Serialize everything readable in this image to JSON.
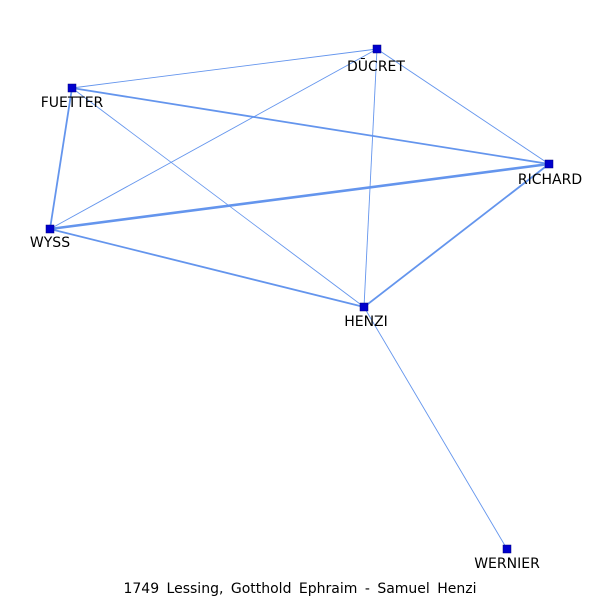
{
  "colors": {
    "edge": "#6495ed",
    "node_fill": "#0000cd",
    "node_stroke": "#000080",
    "label": "#000000"
  },
  "caption": "1749 Lessing, Gotthold Ephraim - Samuel Henzi",
  "nodes": [
    {
      "id": "ducret",
      "label": "DŪCRET"
    },
    {
      "id": "fuetter",
      "label": "FUETTER"
    },
    {
      "id": "richard",
      "label": "RICHARD"
    },
    {
      "id": "wyss",
      "label": "WYSS"
    },
    {
      "id": "henzi",
      "label": "HENZI"
    },
    {
      "id": "wernier",
      "label": "WERNIER"
    }
  ],
  "edges": [
    {
      "source": "fuetter",
      "target": "ducret",
      "weight": 1
    },
    {
      "source": "fuetter",
      "target": "richard",
      "weight": 2
    },
    {
      "source": "fuetter",
      "target": "wyss",
      "weight": 2
    },
    {
      "source": "fuetter",
      "target": "henzi",
      "weight": 1
    },
    {
      "source": "ducret",
      "target": "richard",
      "weight": 1
    },
    {
      "source": "ducret",
      "target": "wyss",
      "weight": 1
    },
    {
      "source": "ducret",
      "target": "henzi",
      "weight": 1
    },
    {
      "source": "wyss",
      "target": "richard",
      "weight": 3
    },
    {
      "source": "wyss",
      "target": "henzi",
      "weight": 2
    },
    {
      "source": "henzi",
      "target": "richard",
      "weight": 2
    },
    {
      "source": "henzi",
      "target": "wernier",
      "weight": 1
    }
  ]
}
